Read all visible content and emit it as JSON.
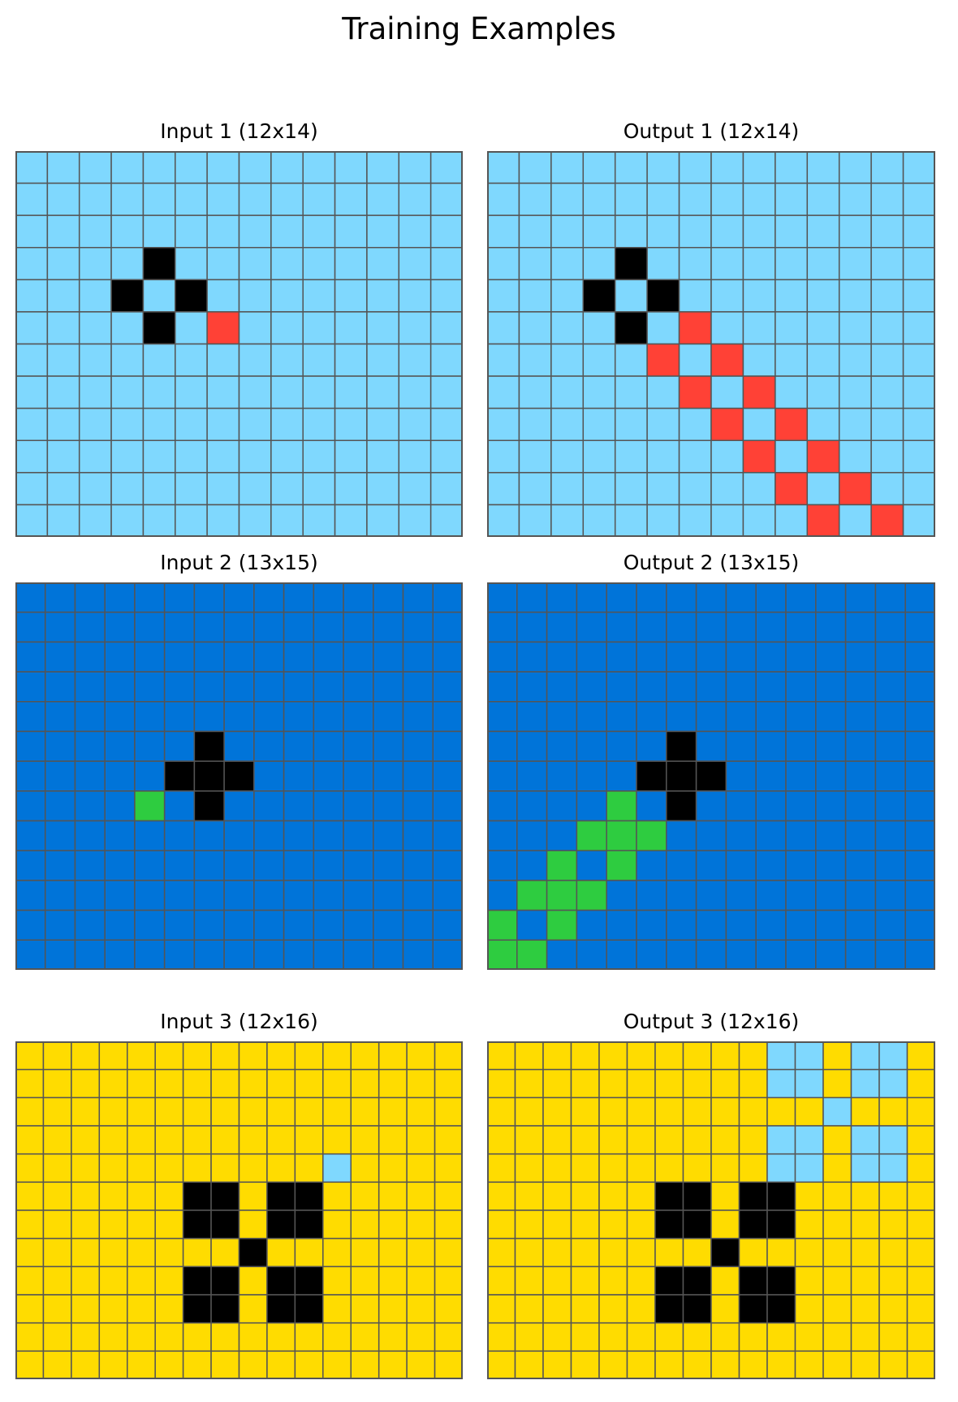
{
  "title": "Training Examples",
  "colors": {
    "light_blue": "#7fd8fe",
    "blue": "#0074d9",
    "yellow": "#ffdc00",
    "black": "#000000",
    "red": "#ff4136",
    "green": "#2ecc40",
    "grid_line": "#555555"
  },
  "palette": {
    "L": "light_blue",
    "B": "blue",
    "Y": "yellow",
    "K": "black",
    "R": "red",
    "G": "green"
  },
  "examples": [
    {
      "input": {
        "label": "Input 1 (12x14)",
        "rows": [
          "LLLLLLLLLLLLLL",
          "LLLLLLLLLLLLLL",
          "LLLLLLLLLLLLLL",
          "LLLLKLLLLLLLLL",
          "LLLKLKLLLLLLLL",
          "LLLLKLRLLLLLLL",
          "LLLLLLLLLLLLLL",
          "LLLLLLLLLLLLLL",
          "LLLLLLLLLLLLLL",
          "LLLLLLLLLLLLLL",
          "LLLLLLLLLLLLLL",
          "LLLLLLLLLLLLLL"
        ]
      },
      "output": {
        "label": "Output 1 (12x14)",
        "rows": [
          "LLLLLLLLLLLLLL",
          "LLLLLLLLLLLLLL",
          "LLLLLLLLLLLLLL",
          "LLLLKLLLLLLLLL",
          "LLLKLKLLLLLLLL",
          "LLLLKLRLLLLLLL",
          "LLLLLRLRLLLLLL",
          "LLLLLLRLRLLLLL",
          "LLLLLLLRLRLLLL",
          "LLLLLLLLRLRLLL",
          "LLLLLLLLLRLRLL",
          "LLLLLLLLLLRLRL"
        ]
      }
    },
    {
      "input": {
        "label": "Input 2 (13x15)",
        "rows": [
          "BBBBBBBBBBBBBBB",
          "BBBBBBBBBBBBBBB",
          "BBBBBBBBBBBBBBB",
          "BBBBBBBBBBBBBBB",
          "BBBBBBBBBBBBBBB",
          "BBBBBBKBBBBBBBB",
          "BBBBBKKKBBBBBBB",
          "BBBBGBKBBBBBBBB",
          "BBBBBBBBBBBBBBB",
          "BBBBBBBBBBBBBBB",
          "BBBBBBBBBBBBBBB",
          "BBBBBBBBBBBBBBB",
          "BBBBBBBBBBBBBBB"
        ]
      },
      "output": {
        "label": "Output 2 (13x15)",
        "rows": [
          "BBBBBBBBBBBBBBB",
          "BBBBBBBBBBBBBBB",
          "BBBBBBBBBBBBBBB",
          "BBBBBBBBBBBBBBB",
          "BBBBBBBBBBBBBBB",
          "BBBBBBKBBBBBBBB",
          "BBBBBKKKBBBBBBB",
          "BBBBGBKBBBBBBBB",
          "BBBGGGBBBBBBBBB",
          "BBGBGBBBBBBBBBB",
          "BGGGBBBBBBBBBBB",
          "GBGBBBBBBBBBBBB",
          "GGBBBBBBBBBBBBB"
        ]
      }
    },
    {
      "input": {
        "label": "Input 3 (12x16)",
        "rows": [
          "YYYYYYYYYYYYYYYY",
          "YYYYYYYYYYYYYYYY",
          "YYYYYYYYYYYYYYYY",
          "YYYYYYYYYYYYYYYY",
          "YYYYYYYYYYYLYYYY",
          "YYYYYYKKYKKYYYYY",
          "YYYYYYKKYKKYYYYY",
          "YYYYYYYYKYYYYYYY",
          "YYYYYYKKYKKYYYYY",
          "YYYYYYKKYKKYYYYY",
          "YYYYYYYYYYYYYYYY",
          "YYYYYYYYYYYYYYYY"
        ]
      },
      "output": {
        "label": "Output 3 (12x16)",
        "rows": [
          "YYYYYYYYYYLLYLLY",
          "YYYYYYYYYYLLYLLY",
          "YYYYYYYYYYYYLYYY",
          "YYYYYYYYYYLLYLLY",
          "YYYYYYYYYYLLYLLY",
          "YYYYYYKKYKKYYYYY",
          "YYYYYYKKYKKYYYYY",
          "YYYYYYYYKYYYYYYY",
          "YYYYYYKKYKKYYYYY",
          "YYYYYYKKYKKYYYYY",
          "YYYYYYYYYYYYYYYY",
          "YYYYYYYYYYYYYYYY"
        ]
      }
    }
  ]
}
